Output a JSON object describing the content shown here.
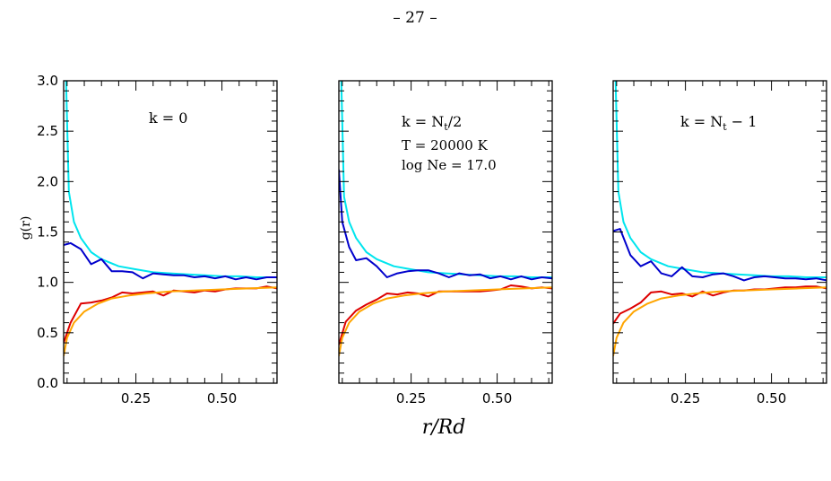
{
  "page_header": "– 27 –",
  "colors": {
    "cyan": "#00e5ee",
    "blue": "#0000cc",
    "red": "#dd0000",
    "orange": "#ffa500"
  },
  "chart_data": {
    "type": "line",
    "ylabel": "g(r)",
    "xlabel": "r/Rd",
    "xlim": [
      0.04,
      0.66
    ],
    "ylim": [
      0.0,
      3.0
    ],
    "xticks": [
      0.25,
      0.5
    ],
    "xtick_labels": [
      "0.25",
      "0.50"
    ],
    "yticks": [
      0.0,
      0.5,
      1.0,
      1.5,
      2.0,
      2.5,
      3.0
    ],
    "ytick_labels": [
      "0.0",
      "0.5",
      "1.0",
      "1.5",
      "2.0",
      "2.5",
      "3.0"
    ],
    "panels": [
      {
        "annotation": [
          "k = 0"
        ],
        "series": [
          {
            "color": "cyan",
            "x": [
              0.047,
              0.055,
              0.07,
              0.09,
              0.12,
              0.15,
              0.2,
              0.25,
              0.3,
              0.35,
              0.4,
              0.45,
              0.5,
              0.55,
              0.6,
              0.66
            ],
            "y": [
              3.0,
              1.9,
              1.6,
              1.44,
              1.3,
              1.23,
              1.16,
              1.13,
              1.1,
              1.09,
              1.08,
              1.07,
              1.06,
              1.06,
              1.05,
              1.05
            ]
          },
          {
            "color": "blue",
            "x": [
              0.04,
              0.06,
              0.09,
              0.12,
              0.15,
              0.18,
              0.21,
              0.24,
              0.27,
              0.3,
              0.33,
              0.36,
              0.39,
              0.42,
              0.45,
              0.48,
              0.51,
              0.54,
              0.57,
              0.6,
              0.63,
              0.66
            ],
            "y": [
              1.37,
              1.39,
              1.33,
              1.18,
              1.23,
              1.11,
              1.11,
              1.1,
              1.04,
              1.09,
              1.08,
              1.07,
              1.07,
              1.05,
              1.06,
              1.04,
              1.06,
              1.03,
              1.05,
              1.03,
              1.05,
              1.05
            ]
          },
          {
            "color": "red",
            "x": [
              0.04,
              0.06,
              0.09,
              0.12,
              0.15,
              0.18,
              0.21,
              0.24,
              0.27,
              0.3,
              0.33,
              0.36,
              0.39,
              0.42,
              0.45,
              0.48,
              0.51,
              0.54,
              0.57,
              0.6,
              0.63,
              0.66
            ],
            "y": [
              0.4,
              0.6,
              0.79,
              0.8,
              0.82,
              0.85,
              0.9,
              0.89,
              0.9,
              0.91,
              0.87,
              0.92,
              0.91,
              0.9,
              0.92,
              0.91,
              0.93,
              0.94,
              0.94,
              0.94,
              0.96,
              0.94
            ]
          },
          {
            "color": "orange",
            "x": [
              0.04,
              0.05,
              0.07,
              0.1,
              0.14,
              0.18,
              0.23,
              0.28,
              0.35,
              0.42,
              0.5,
              0.58,
              0.66
            ],
            "y": [
              0.27,
              0.45,
              0.6,
              0.71,
              0.79,
              0.84,
              0.87,
              0.89,
              0.91,
              0.92,
              0.93,
              0.94,
              0.95
            ]
          }
        ]
      },
      {
        "annotation": [
          "k = N",
          "t",
          "/2",
          "T = 20000 K",
          "log Ne = 17.0"
        ],
        "series": [
          {
            "color": "cyan",
            "x": [
              0.047,
              0.055,
              0.07,
              0.09,
              0.12,
              0.15,
              0.2,
              0.25,
              0.3,
              0.35,
              0.4,
              0.45,
              0.5,
              0.55,
              0.6,
              0.66
            ],
            "y": [
              3.0,
              1.85,
              1.6,
              1.44,
              1.3,
              1.23,
              1.16,
              1.13,
              1.1,
              1.09,
              1.08,
              1.07,
              1.06,
              1.06,
              1.05,
              1.05
            ]
          },
          {
            "color": "blue",
            "x": [
              0.04,
              0.05,
              0.07,
              0.09,
              0.12,
              0.15,
              0.18,
              0.21,
              0.24,
              0.27,
              0.3,
              0.33,
              0.36,
              0.39,
              0.42,
              0.45,
              0.48,
              0.51,
              0.54,
              0.57,
              0.6,
              0.63,
              0.66
            ],
            "y": [
              2.12,
              1.6,
              1.35,
              1.22,
              1.24,
              1.16,
              1.05,
              1.09,
              1.11,
              1.12,
              1.12,
              1.09,
              1.05,
              1.09,
              1.07,
              1.08,
              1.04,
              1.06,
              1.03,
              1.06,
              1.03,
              1.05,
              1.04
            ]
          },
          {
            "color": "red",
            "x": [
              0.04,
              0.06,
              0.09,
              0.12,
              0.15,
              0.18,
              0.21,
              0.24,
              0.27,
              0.3,
              0.33,
              0.36,
              0.39,
              0.42,
              0.45,
              0.48,
              0.51,
              0.54,
              0.57,
              0.6,
              0.63,
              0.66
            ],
            "y": [
              0.38,
              0.61,
              0.72,
              0.78,
              0.83,
              0.89,
              0.88,
              0.9,
              0.89,
              0.86,
              0.91,
              0.91,
              0.91,
              0.91,
              0.91,
              0.92,
              0.93,
              0.97,
              0.96,
              0.94,
              0.95,
              0.94
            ]
          },
          {
            "color": "orange",
            "x": [
              0.04,
              0.05,
              0.07,
              0.1,
              0.14,
              0.18,
              0.23,
              0.28,
              0.35,
              0.42,
              0.5,
              0.58,
              0.66
            ],
            "y": [
              0.27,
              0.45,
              0.6,
              0.71,
              0.79,
              0.84,
              0.87,
              0.89,
              0.91,
              0.92,
              0.93,
              0.94,
              0.95
            ]
          }
        ]
      },
      {
        "annotation": [
          "k = N",
          "t",
          " − 1"
        ],
        "series": [
          {
            "color": "cyan",
            "x": [
              0.047,
              0.055,
              0.07,
              0.09,
              0.12,
              0.15,
              0.2,
              0.25,
              0.3,
              0.35,
              0.4,
              0.45,
              0.5,
              0.55,
              0.6,
              0.66
            ],
            "y": [
              3.0,
              1.9,
              1.6,
              1.44,
              1.3,
              1.23,
              1.16,
              1.13,
              1.1,
              1.09,
              1.08,
              1.07,
              1.06,
              1.06,
              1.05,
              1.05
            ]
          },
          {
            "color": "blue",
            "x": [
              0.04,
              0.06,
              0.09,
              0.12,
              0.15,
              0.18,
              0.21,
              0.24,
              0.27,
              0.3,
              0.33,
              0.36,
              0.39,
              0.42,
              0.45,
              0.48,
              0.51,
              0.54,
              0.57,
              0.6,
              0.63,
              0.66
            ],
            "y": [
              1.51,
              1.53,
              1.27,
              1.16,
              1.21,
              1.09,
              1.06,
              1.15,
              1.06,
              1.05,
              1.08,
              1.09,
              1.06,
              1.02,
              1.05,
              1.06,
              1.05,
              1.04,
              1.04,
              1.03,
              1.04,
              1.02
            ]
          },
          {
            "color": "red",
            "x": [
              0.04,
              0.06,
              0.09,
              0.12,
              0.15,
              0.18,
              0.21,
              0.24,
              0.27,
              0.3,
              0.33,
              0.36,
              0.39,
              0.42,
              0.45,
              0.48,
              0.51,
              0.54,
              0.57,
              0.6,
              0.63,
              0.66
            ],
            "y": [
              0.59,
              0.69,
              0.74,
              0.8,
              0.9,
              0.91,
              0.88,
              0.89,
              0.86,
              0.91,
              0.87,
              0.9,
              0.92,
              0.92,
              0.93,
              0.93,
              0.94,
              0.95,
              0.95,
              0.96,
              0.96,
              0.94
            ]
          },
          {
            "color": "orange",
            "x": [
              0.04,
              0.05,
              0.07,
              0.1,
              0.14,
              0.18,
              0.23,
              0.28,
              0.35,
              0.42,
              0.5,
              0.58,
              0.66
            ],
            "y": [
              0.27,
              0.45,
              0.6,
              0.71,
              0.79,
              0.84,
              0.87,
              0.89,
              0.91,
              0.92,
              0.93,
              0.94,
              0.95
            ]
          }
        ]
      }
    ]
  }
}
